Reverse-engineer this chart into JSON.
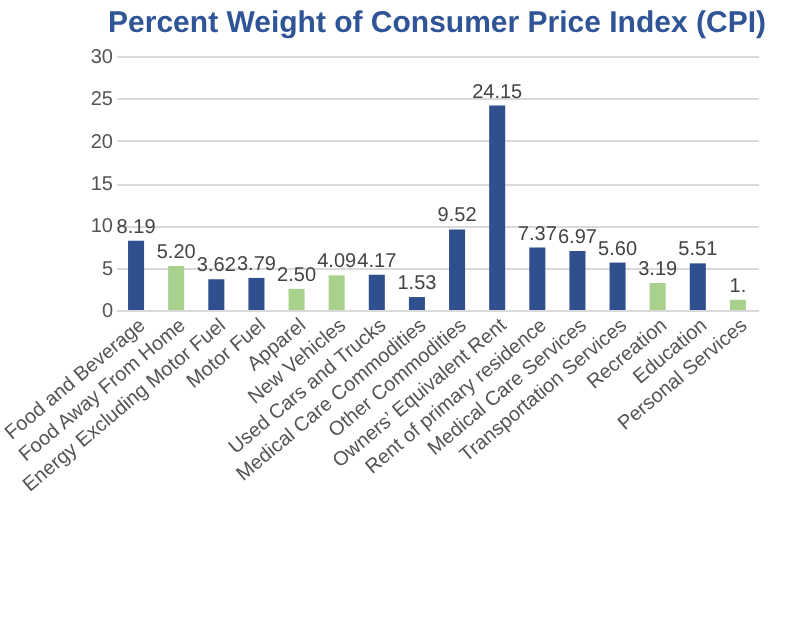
{
  "chart_data": {
    "type": "bar",
    "title": "Percent Weight of Consumer Price Index (CPI)",
    "categories": [
      "Food and Beverage",
      "Food Away From Home",
      "Energy Excluding Motor Fuel",
      "Motor Fuel",
      "Apparel",
      "New Vehicles",
      "Used Cars and Trucks",
      "Medical Care Commodities",
      "Other Commodities",
      "Owners’ Equivalent Rent",
      "Rent of primary residence",
      "Medical Care Services",
      "Transportation Services",
      "Recreation",
      "Education",
      "Personal Services"
    ],
    "values": [
      8.19,
      5.2,
      3.62,
      3.79,
      2.5,
      4.09,
      4.17,
      1.53,
      9.52,
      24.15,
      7.37,
      6.97,
      5.6,
      3.19,
      5.51,
      1.2
    ],
    "value_labels": [
      "8.19",
      "5.20",
      "3.62",
      "3.79",
      "2.50",
      "4.09",
      "4.17",
      "1.53",
      "9.52",
      "24.15",
      "7.37",
      "6.97",
      "5.60",
      "3.19",
      "5.51",
      "1."
    ],
    "colors": [
      "#2f4f8f",
      "#a9d18e",
      "#2f4f8f",
      "#2f4f8f",
      "#a9d18e",
      "#a9d18e",
      "#2f4f8f",
      "#2f4f8f",
      "#2f4f8f",
      "#2f4f8f",
      "#2f4f8f",
      "#2f4f8f",
      "#2f4f8f",
      "#a9d18e",
      "#2f4f8f",
      "#a9d18e"
    ],
    "ylim": [
      0,
      30
    ],
    "yticks": [
      0,
      5,
      10,
      15,
      20,
      25,
      30
    ],
    "grid": "y"
  }
}
